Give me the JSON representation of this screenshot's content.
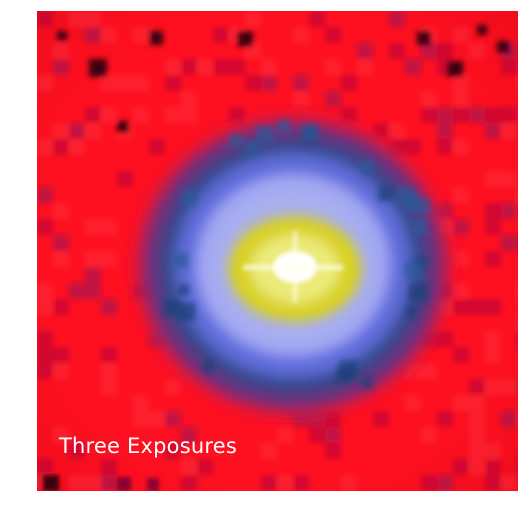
{
  "image": {
    "caption": "Three Exposures",
    "colors": {
      "background": "#ffffff",
      "field": "#ff1020",
      "dark_noise": "#1a0008",
      "halo_outer": "#3a3f8a",
      "halo_mid": "#6a72e6",
      "halo_inner": "#b9bdf5",
      "core": "#d9d21a",
      "center": "#ffffff"
    }
  }
}
